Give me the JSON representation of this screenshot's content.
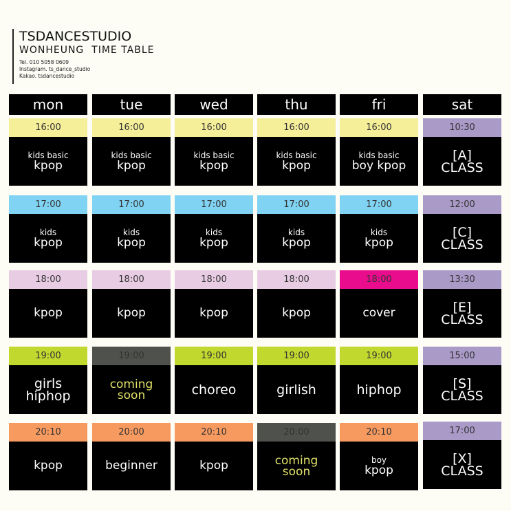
{
  "header": {
    "studio": "TSDANCESTUDIO",
    "subtitle": "WONHEUNG  TIME TABLE",
    "tel": "Tel. 010 5058 0609",
    "instagram": "Instagram. ts_dance_studio",
    "kakao": "Kakao. tsdancestudio"
  },
  "colors": {
    "yellow": "#f5ef9a",
    "blue": "#80d3f2",
    "lightpink": "#e8cce4",
    "magenta": "#e90c8c",
    "lime": "#c1d82f",
    "gray": "#4f514d",
    "orange": "#f79a60",
    "purple": "#a99ac8"
  },
  "days": [
    {
      "label": "mon",
      "classes": [
        {
          "time": "16:00",
          "color": "yellow",
          "lines": [
            "kids basic",
            "kpop"
          ],
          "style": "s1"
        },
        {
          "time": "17:00",
          "color": "blue",
          "lines": [
            "kids",
            "kpop"
          ],
          "style": "s1"
        },
        {
          "time": "18:00",
          "color": "lightpink",
          "lines": [
            "kpop"
          ],
          "style": "s1"
        },
        {
          "time": "19:00",
          "color": "lime",
          "lines": [
            "girls",
            "hiphop"
          ],
          "style": "s2"
        },
        {
          "time": "20:10",
          "color": "orange",
          "lines": [
            "kpop"
          ],
          "style": "s1"
        }
      ]
    },
    {
      "label": "tue",
      "classes": [
        {
          "time": "16:00",
          "color": "yellow",
          "lines": [
            "kids basic",
            "kpop"
          ],
          "style": "s1"
        },
        {
          "time": "17:00",
          "color": "blue",
          "lines": [
            "kids",
            "kpop"
          ],
          "style": "s1"
        },
        {
          "time": "18:00",
          "color": "lightpink",
          "lines": [
            "kpop"
          ],
          "style": "s1"
        },
        {
          "time": "19:00",
          "color": "gray",
          "lines": [
            "coming",
            "soon"
          ],
          "style": "soon"
        },
        {
          "time": "20:00",
          "color": "orange",
          "lines": [
            "beginner"
          ],
          "style": "s1"
        }
      ]
    },
    {
      "label": "wed",
      "classes": [
        {
          "time": "16:00",
          "color": "yellow",
          "lines": [
            "kids basic",
            "kpop"
          ],
          "style": "s1"
        },
        {
          "time": "17:00",
          "color": "blue",
          "lines": [
            "kids",
            "kpop"
          ],
          "style": "s1"
        },
        {
          "time": "18:00",
          "color": "lightpink",
          "lines": [
            "kpop"
          ],
          "style": "s1"
        },
        {
          "time": "19:00",
          "color": "lime",
          "lines": [
            "choreo"
          ],
          "style": "s2"
        },
        {
          "time": "20:10",
          "color": "orange",
          "lines": [
            "kpop"
          ],
          "style": "s1"
        }
      ]
    },
    {
      "label": "thu",
      "classes": [
        {
          "time": "16:00",
          "color": "yellow",
          "lines": [
            "kids basic",
            "kpop"
          ],
          "style": "s1"
        },
        {
          "time": "17:00",
          "color": "blue",
          "lines": [
            "kids",
            "kpop"
          ],
          "style": "s1"
        },
        {
          "time": "18:00",
          "color": "lightpink",
          "lines": [
            "kpop"
          ],
          "style": "s1"
        },
        {
          "time": "19:00",
          "color": "lime",
          "lines": [
            "girlish"
          ],
          "style": "s2"
        },
        {
          "time": "20:00",
          "color": "gray",
          "lines": [
            "coming",
            "soon"
          ],
          "style": "soon"
        }
      ]
    },
    {
      "label": "fri",
      "classes": [
        {
          "time": "16:00",
          "color": "yellow",
          "lines": [
            "kids basic",
            "boy kpop"
          ],
          "style": "s1"
        },
        {
          "time": "17:00",
          "color": "blue",
          "lines": [
            "kids",
            "kpop"
          ],
          "style": "s1"
        },
        {
          "time": "18:00",
          "color": "magenta",
          "lines": [
            "cover"
          ],
          "style": "s1"
        },
        {
          "time": "19:00",
          "color": "lime",
          "lines": [
            "hiphop"
          ],
          "style": "s2"
        },
        {
          "time": "20:10",
          "color": "orange",
          "lines": [
            "boy",
            "kpop"
          ],
          "style": "s1"
        }
      ]
    },
    {
      "label": "sat",
      "classes": [
        {
          "time": "10:30",
          "color": "purple",
          "lines": [
            "[A]",
            "CLASS"
          ],
          "style": "s2"
        },
        {
          "time": "12:00",
          "color": "purple",
          "lines": [
            "[C]",
            "CLASS"
          ],
          "style": "s2"
        },
        {
          "time": "13:30",
          "color": "purple",
          "lines": [
            "[E]",
            "CLASS"
          ],
          "style": "s2"
        },
        {
          "time": "15:00",
          "color": "purple",
          "lines": [
            "[S]",
            "CLASS"
          ],
          "style": "s2"
        },
        {
          "time": "17:00",
          "color": "purple",
          "lines": [
            "[X]",
            "CLASS"
          ],
          "style": "s2"
        }
      ]
    }
  ]
}
